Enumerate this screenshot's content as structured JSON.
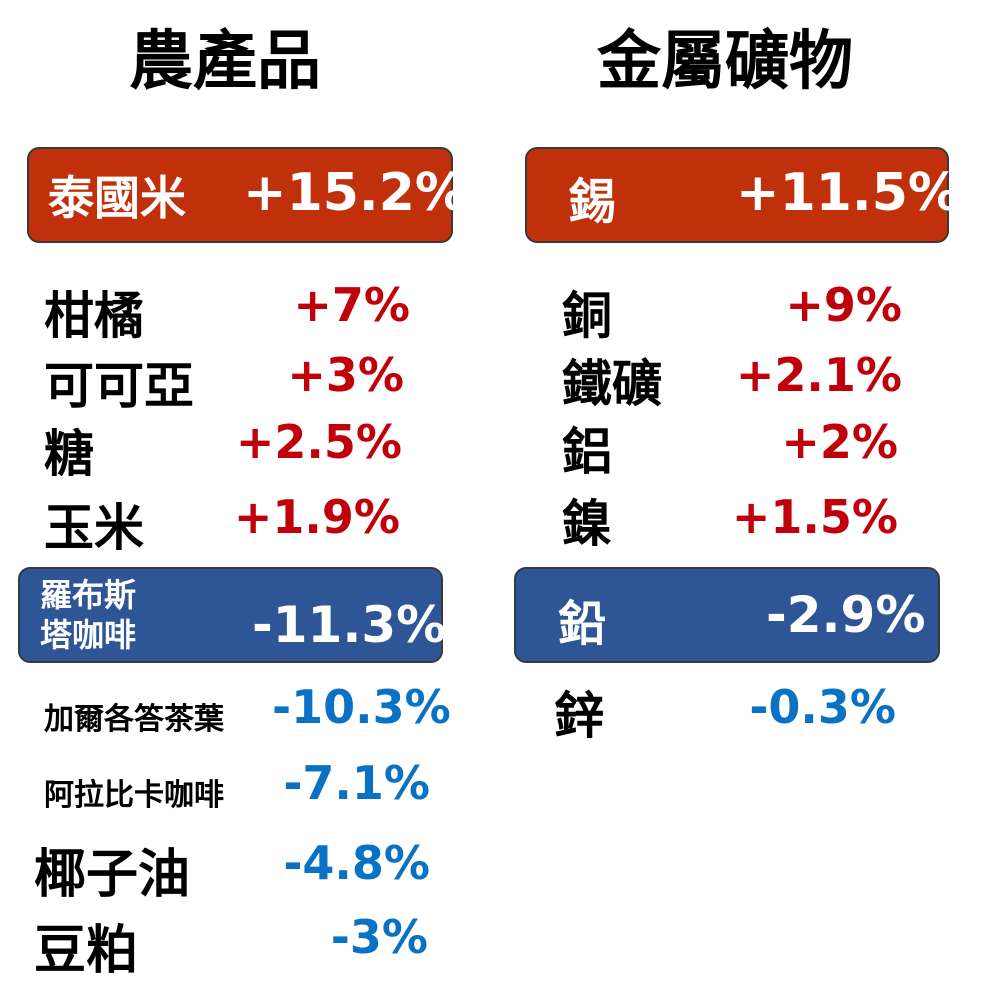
{
  "colors": {
    "gain_box": "#c0300a",
    "loss_box": "#2e5596",
    "gain_text": "#c0000a",
    "loss_text": "#0a72c4"
  },
  "agri": {
    "title": "農產品",
    "top": {
      "name": "泰國米",
      "value": "+15.2%"
    },
    "gains": [
      {
        "name": "柑橘",
        "value": "+7%"
      },
      {
        "name": "可可亞",
        "value": "+3%"
      },
      {
        "name": "糖",
        "value": "+2.5%"
      },
      {
        "name": "玉米",
        "value": "+1.9%"
      }
    ],
    "bottom": {
      "name_line1": "羅布斯",
      "name_line2": "塔咖啡",
      "value": "-11.3%"
    },
    "losses": [
      {
        "name": "加爾各答茶葉",
        "value": "-10.3%"
      },
      {
        "name": "阿拉比卡咖啡",
        "value": "-7.1%"
      },
      {
        "name": "椰子油",
        "value": "-4.8%"
      },
      {
        "name": "豆粕",
        "value": "-3%"
      }
    ]
  },
  "metals": {
    "title": "金屬礦物",
    "top": {
      "name": "錫",
      "value": "+11.5%"
    },
    "gains": [
      {
        "name": "銅",
        "value": "+9%"
      },
      {
        "name": "鐵礦",
        "value": "+2.1%"
      },
      {
        "name": "鋁",
        "value": "+2%"
      },
      {
        "name": "鎳",
        "value": "+1.5%"
      }
    ],
    "bottom": {
      "name": "鉛",
      "value": "-2.9%"
    },
    "losses": [
      {
        "name": "鋅",
        "value": "-0.3%"
      }
    ]
  }
}
